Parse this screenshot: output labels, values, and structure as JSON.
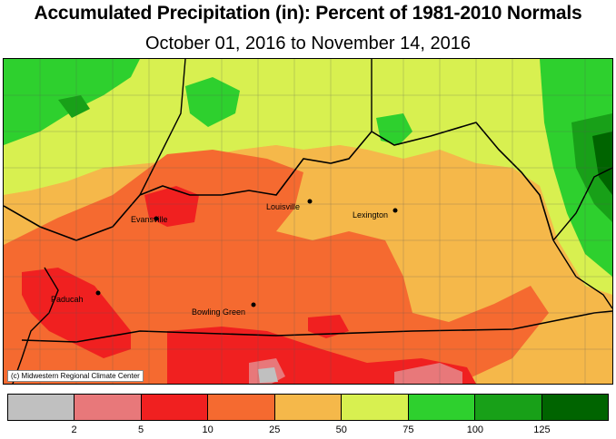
{
  "title": "Accumulated Precipitation (in): Percent of 1981-2010 Normals",
  "subtitle": "October 01, 2016 to November 14, 2016",
  "credit": "(c) Midwestern Regional Climate Center",
  "cities": {
    "evansville": "Evansville",
    "louisville": "Louisville",
    "lexington": "Lexington",
    "paducah": "Paducah",
    "bowling_green": "Bowling Green"
  },
  "legend": {
    "colors": [
      "#c0c0c0",
      "#e8787a",
      "#f02020",
      "#f56a30",
      "#f5b84a",
      "#d8f050",
      "#2ed02e",
      "#18a018",
      "#006400"
    ],
    "ticks": [
      "2",
      "5",
      "10",
      "25",
      "50",
      "75",
      "100",
      "125"
    ]
  },
  "palette": {
    "gray": "#c0c0c0",
    "pink": "#e8787a",
    "red": "#f02020",
    "orange_red": "#f56a30",
    "orange": "#f5b84a",
    "yellow_green": "#d8f050",
    "green": "#2ed02e",
    "dark_green": "#18a018",
    "darkest_green": "#006400"
  }
}
